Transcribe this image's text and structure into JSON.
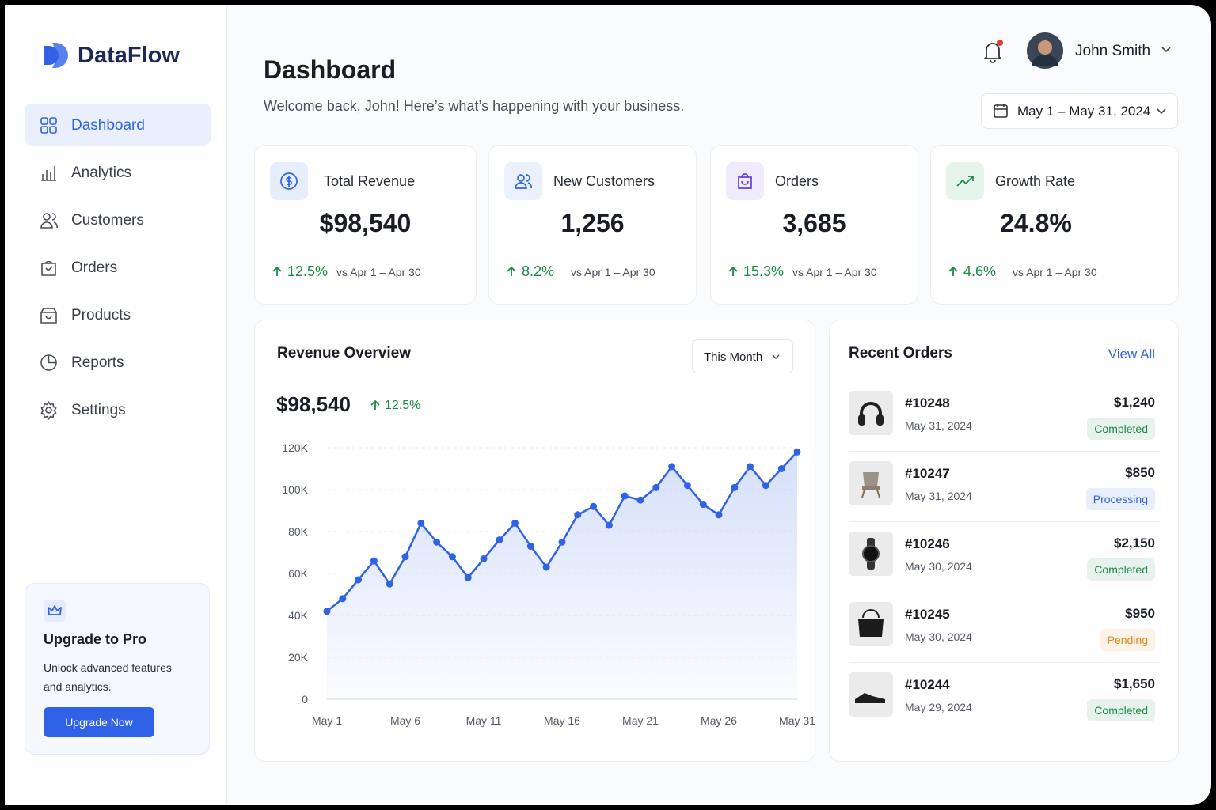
{
  "sidebar": {
    "brand": "DataFlow",
    "nav": [
      "Dashboard",
      "Analytics",
      "Customers",
      "Orders",
      "Products",
      "Reports",
      "Settings"
    ],
    "upgrade": {
      "title": "Upgrade to Pro",
      "text": "Unlock advanced features and analytics.",
      "button": "Upgrade Now"
    }
  },
  "header": {
    "title": "Dashboard",
    "subtitle": "Welcome back, John! Here’s what’s happening with your business.",
    "user": "John Smith",
    "date_range": "May 1 – May 31, 2024"
  },
  "kpis": [
    {
      "label": "Total Revenue",
      "value": "$98,540",
      "change": "12.5%",
      "compare": "vs Apr 1 – Apr 30"
    },
    {
      "label": "New Customers",
      "value": "1,256",
      "change": "8.2%",
      "compare": "vs Apr 1 – Apr 30"
    },
    {
      "label": "Orders",
      "value": "3,685",
      "change": "15.3%",
      "compare": "vs Apr 1 – Apr 30"
    },
    {
      "label": "Growth Rate",
      "value": "24.8%",
      "change": "4.6%",
      "compare": "vs Apr 1 – Apr 30"
    }
  ],
  "chart_data": {
    "type": "line",
    "title": "Revenue Overview",
    "period": "This Month",
    "total": "$98,540",
    "change": "12.5%",
    "categories": [
      "May 1",
      null,
      null,
      null,
      null,
      "May 6",
      null,
      null,
      null,
      null,
      "May 11",
      null,
      null,
      null,
      null,
      "May 16",
      null,
      null,
      null,
      null,
      "May 21",
      null,
      null,
      null,
      null,
      "May 26",
      null,
      null,
      null,
      null,
      "May 31"
    ],
    "values": [
      42000,
      48000,
      57000,
      66000,
      55000,
      68000,
      84000,
      75000,
      68000,
      58000,
      67000,
      76000,
      84000,
      73000,
      63000,
      75000,
      88000,
      92000,
      83000,
      97000,
      95000,
      101000,
      111000,
      102000,
      93000,
      88000,
      101000,
      111000,
      102000,
      110000,
      118000
    ],
    "color": "#2f62e6",
    "ylim": [
      0,
      120000
    ],
    "yticks": [
      0,
      {
        "value": 20000,
        "label": "20K"
      },
      {
        "value": 40000,
        "label": "40K"
      },
      {
        "value": 60000,
        "label": "60K"
      },
      {
        "value": 80000,
        "label": "80K"
      },
      {
        "value": 100000,
        "label": "100K"
      },
      {
        "value": 120000,
        "label": "120K"
      }
    ],
    "grid": true
  },
  "orders": {
    "title": "Recent Orders",
    "link": "View All",
    "items": [
      {
        "id": "#10248",
        "date": "May 31, 2024",
        "amount": "$1,240",
        "status": "Completed",
        "color": "#1a8a45"
      },
      {
        "id": "#10247",
        "date": "May 31, 2024",
        "amount": "$850",
        "status": "Processing",
        "color": "#2f62e6"
      },
      {
        "id": "#10246",
        "date": "May 30, 2024",
        "amount": "$2,150",
        "status": "Completed",
        "color": "#1a8a45"
      },
      {
        "id": "#10245",
        "date": "May 30, 2024",
        "amount": "$950",
        "status": "Pending",
        "color": "#e08a1e"
      },
      {
        "id": "#10244",
        "date": "May 29, 2024",
        "amount": "$1,650",
        "status": "Completed",
        "color": "#1a8a45"
      }
    ]
  }
}
